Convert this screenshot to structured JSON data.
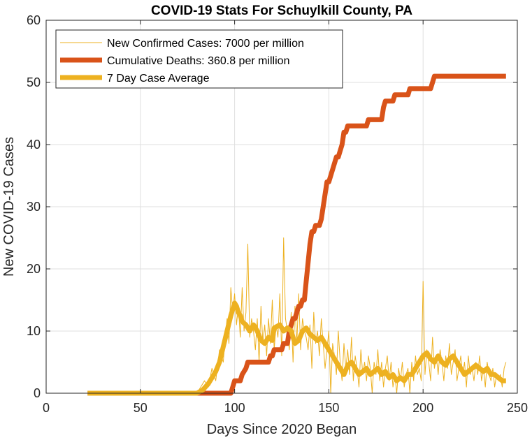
{
  "chart_data": {
    "type": "line",
    "title": "COVID-19 Stats For Schuylkill County, PA",
    "xlabel": "Days Since 2020 Began",
    "ylabel": "New COVID-19 Cases",
    "xlim": [
      0,
      250
    ],
    "ylim": [
      0,
      60
    ],
    "xticks": [
      "0",
      "50",
      "100",
      "150",
      "200",
      "250"
    ],
    "yticks": [
      "0",
      "10",
      "20",
      "30",
      "40",
      "50",
      "60"
    ],
    "grid": true,
    "legend_position": "top-left",
    "series": [
      {
        "name": "New Confirmed Cases: 7000 per million",
        "color": "#EDB120",
        "style": "thin",
        "points": [
          [
            22,
            0
          ],
          [
            80,
            0
          ],
          [
            82,
            1
          ],
          [
            84,
            2
          ],
          [
            86,
            1
          ],
          [
            88,
            4
          ],
          [
            90,
            2
          ],
          [
            92,
            7
          ],
          [
            94,
            5
          ],
          [
            95,
            9
          ],
          [
            96,
            12
          ],
          [
            97,
            8
          ],
          [
            98,
            17
          ],
          [
            99,
            13
          ],
          [
            100,
            16
          ],
          [
            101,
            11
          ],
          [
            102,
            14
          ],
          [
            103,
            9
          ],
          [
            104,
            17
          ],
          [
            105,
            10
          ],
          [
            106,
            13
          ],
          [
            107,
            24
          ],
          [
            108,
            9
          ],
          [
            109,
            12
          ],
          [
            110,
            10
          ],
          [
            111,
            7
          ],
          [
            112,
            12
          ],
          [
            113,
            5
          ],
          [
            114,
            14
          ],
          [
            115,
            8
          ],
          [
            116,
            11
          ],
          [
            117,
            6
          ],
          [
            118,
            12
          ],
          [
            119,
            8
          ],
          [
            120,
            15
          ],
          [
            121,
            7
          ],
          [
            122,
            11
          ],
          [
            123,
            9
          ],
          [
            124,
            16
          ],
          [
            125,
            6
          ],
          [
            126,
            25
          ],
          [
            127,
            12
          ],
          [
            128,
            10
          ],
          [
            129,
            7
          ],
          [
            130,
            13
          ],
          [
            131,
            5
          ],
          [
            132,
            14
          ],
          [
            133,
            8
          ],
          [
            134,
            16
          ],
          [
            135,
            7
          ],
          [
            136,
            12
          ],
          [
            137,
            10
          ],
          [
            138,
            9
          ],
          [
            139,
            7
          ],
          [
            140,
            11
          ],
          [
            141,
            4
          ],
          [
            142,
            13
          ],
          [
            143,
            8
          ],
          [
            144,
            10
          ],
          [
            145,
            6
          ],
          [
            146,
            12
          ],
          [
            147,
            8
          ],
          [
            148,
            4
          ],
          [
            149,
            7
          ],
          [
            150,
            10
          ],
          [
            151,
            0
          ],
          [
            152,
            8
          ],
          [
            153,
            6
          ],
          [
            154,
            3
          ],
          [
            155,
            10
          ],
          [
            156,
            5
          ],
          [
            157,
            2
          ],
          [
            158,
            8
          ],
          [
            159,
            4
          ],
          [
            160,
            7
          ],
          [
            161,
            3
          ],
          [
            162,
            9
          ],
          [
            163,
            2
          ],
          [
            164,
            6
          ],
          [
            165,
            4
          ],
          [
            166,
            1
          ],
          [
            167,
            7
          ],
          [
            168,
            3
          ],
          [
            169,
            5
          ],
          [
            170,
            2
          ],
          [
            171,
            6
          ],
          [
            172,
            4
          ],
          [
            173,
            0
          ],
          [
            174,
            5
          ],
          [
            175,
            3
          ],
          [
            176,
            7
          ],
          [
            177,
            2
          ],
          [
            178,
            5
          ],
          [
            179,
            1
          ],
          [
            180,
            4
          ],
          [
            181,
            6
          ],
          [
            182,
            2
          ],
          [
            183,
            5
          ],
          [
            184,
            1
          ],
          [
            185,
            3
          ],
          [
            186,
            0
          ],
          [
            187,
            4
          ],
          [
            188,
            2
          ],
          [
            189,
            5
          ],
          [
            190,
            1
          ],
          [
            191,
            3
          ],
          [
            192,
            4
          ],
          [
            193,
            0
          ],
          [
            194,
            5
          ],
          [
            195,
            2
          ],
          [
            196,
            6
          ],
          [
            197,
            3
          ],
          [
            198,
            4
          ],
          [
            199,
            2
          ],
          [
            200,
            18
          ],
          [
            201,
            3
          ],
          [
            202,
            7
          ],
          [
            203,
            5
          ],
          [
            204,
            2
          ],
          [
            205,
            9
          ],
          [
            206,
            4
          ],
          [
            207,
            6
          ],
          [
            208,
            3
          ],
          [
            209,
            7
          ],
          [
            210,
            5
          ],
          [
            211,
            2
          ],
          [
            212,
            6
          ],
          [
            213,
            4
          ],
          [
            214,
            8
          ],
          [
            215,
            3
          ],
          [
            216,
            5
          ],
          [
            217,
            7
          ],
          [
            218,
            2
          ],
          [
            219,
            4
          ],
          [
            220,
            6
          ],
          [
            221,
            3
          ],
          [
            222,
            5
          ],
          [
            223,
            1
          ],
          [
            224,
            6
          ],
          [
            225,
            3
          ],
          [
            226,
            4
          ],
          [
            227,
            2
          ],
          [
            228,
            5
          ],
          [
            229,
            3
          ],
          [
            230,
            6
          ],
          [
            231,
            2
          ],
          [
            232,
            4
          ],
          [
            233,
            1
          ],
          [
            234,
            5
          ],
          [
            235,
            3
          ],
          [
            236,
            2
          ],
          [
            237,
            4
          ],
          [
            238,
            1
          ],
          [
            239,
            3
          ],
          [
            240,
            2
          ],
          [
            241,
            3
          ],
          [
            242,
            1
          ],
          [
            243,
            4
          ],
          [
            244,
            5
          ]
        ]
      },
      {
        "name": "Cumulative Deaths: 360.8 per million",
        "color": "#D95319",
        "style": "thick",
        "points": [
          [
            22,
            0
          ],
          [
            98,
            0
          ],
          [
            99,
            1
          ],
          [
            100,
            2
          ],
          [
            103,
            2
          ],
          [
            104,
            3
          ],
          [
            106,
            4
          ],
          [
            107,
            5
          ],
          [
            118,
            5
          ],
          [
            119,
            6
          ],
          [
            120,
            6
          ],
          [
            121,
            7
          ],
          [
            125,
            7
          ],
          [
            126,
            8
          ],
          [
            128,
            8
          ],
          [
            129,
            10
          ],
          [
            130,
            11
          ],
          [
            131,
            12
          ],
          [
            132,
            12
          ],
          [
            133,
            13
          ],
          [
            134,
            14
          ],
          [
            135,
            14
          ],
          [
            136,
            15
          ],
          [
            137,
            15
          ],
          [
            138,
            18
          ],
          [
            139,
            21
          ],
          [
            140,
            24
          ],
          [
            141,
            26
          ],
          [
            142,
            26
          ],
          [
            143,
            27
          ],
          [
            145,
            27
          ],
          [
            146,
            28
          ],
          [
            147,
            30
          ],
          [
            148,
            32
          ],
          [
            149,
            34
          ],
          [
            150,
            34
          ],
          [
            151,
            35
          ],
          [
            152,
            36
          ],
          [
            153,
            37
          ],
          [
            154,
            38
          ],
          [
            155,
            38
          ],
          [
            156,
            39
          ],
          [
            157,
            40
          ],
          [
            158,
            42
          ],
          [
            159,
            42
          ],
          [
            160,
            43
          ],
          [
            170,
            43
          ],
          [
            171,
            44
          ],
          [
            178,
            44
          ],
          [
            179,
            46
          ],
          [
            180,
            47
          ],
          [
            184,
            47
          ],
          [
            185,
            48
          ],
          [
            192,
            48
          ],
          [
            193,
            49
          ],
          [
            204,
            49
          ],
          [
            205,
            50
          ],
          [
            206,
            51
          ],
          [
            244,
            51
          ]
        ]
      },
      {
        "name": "7 Day Case Average",
        "color": "#EDB120",
        "style": "thick",
        "points": [
          [
            22,
            0
          ],
          [
            80,
            0
          ],
          [
            83,
            0.5
          ],
          [
            86,
            1.5
          ],
          [
            88,
            2.5
          ],
          [
            90,
            3.5
          ],
          [
            92,
            5
          ],
          [
            94,
            7.5
          ],
          [
            96,
            10
          ],
          [
            98,
            12.5
          ],
          [
            99,
            13.5
          ],
          [
            100,
            14.5
          ],
          [
            101,
            14
          ],
          [
            102,
            13
          ],
          [
            103,
            12.5
          ],
          [
            104,
            11.5
          ],
          [
            106,
            11
          ],
          [
            108,
            10
          ],
          [
            110,
            11
          ],
          [
            112,
            10
          ],
          [
            114,
            8.5
          ],
          [
            116,
            8
          ],
          [
            118,
            9
          ],
          [
            120,
            8.5
          ],
          [
            121,
            10.5
          ],
          [
            124,
            11
          ],
          [
            126,
            10
          ],
          [
            128,
            10.5
          ],
          [
            130,
            10
          ],
          [
            131,
            9
          ],
          [
            132,
            8
          ],
          [
            134,
            8.5
          ],
          [
            136,
            10
          ],
          [
            138,
            10.5
          ],
          [
            140,
            9.5
          ],
          [
            142,
            9
          ],
          [
            144,
            8.5
          ],
          [
            146,
            9
          ],
          [
            148,
            8
          ],
          [
            150,
            7
          ],
          [
            152,
            6
          ],
          [
            154,
            5
          ],
          [
            156,
            4
          ],
          [
            158,
            3
          ],
          [
            160,
            4.5
          ],
          [
            162,
            5
          ],
          [
            164,
            4
          ],
          [
            166,
            3
          ],
          [
            168,
            3.5
          ],
          [
            170,
            4
          ],
          [
            172,
            3
          ],
          [
            174,
            3.5
          ],
          [
            176,
            4
          ],
          [
            178,
            3
          ],
          [
            180,
            3.5
          ],
          [
            182,
            2.5
          ],
          [
            184,
            3
          ],
          [
            186,
            2
          ],
          [
            188,
            2.5
          ],
          [
            190,
            2
          ],
          [
            192,
            3
          ],
          [
            194,
            3
          ],
          [
            196,
            4
          ],
          [
            198,
            5
          ],
          [
            200,
            6
          ],
          [
            202,
            6.5
          ],
          [
            204,
            5.5
          ],
          [
            206,
            5
          ],
          [
            208,
            6
          ],
          [
            210,
            5
          ],
          [
            212,
            4.5
          ],
          [
            214,
            5.5
          ],
          [
            216,
            6
          ],
          [
            218,
            5
          ],
          [
            220,
            4
          ],
          [
            222,
            3
          ],
          [
            224,
            3.5
          ],
          [
            226,
            4
          ],
          [
            228,
            4.5
          ],
          [
            230,
            4
          ],
          [
            232,
            3.5
          ],
          [
            234,
            4
          ],
          [
            236,
            3
          ],
          [
            238,
            3
          ],
          [
            240,
            2.5
          ],
          [
            242,
            2
          ],
          [
            244,
            2
          ]
        ]
      }
    ]
  }
}
